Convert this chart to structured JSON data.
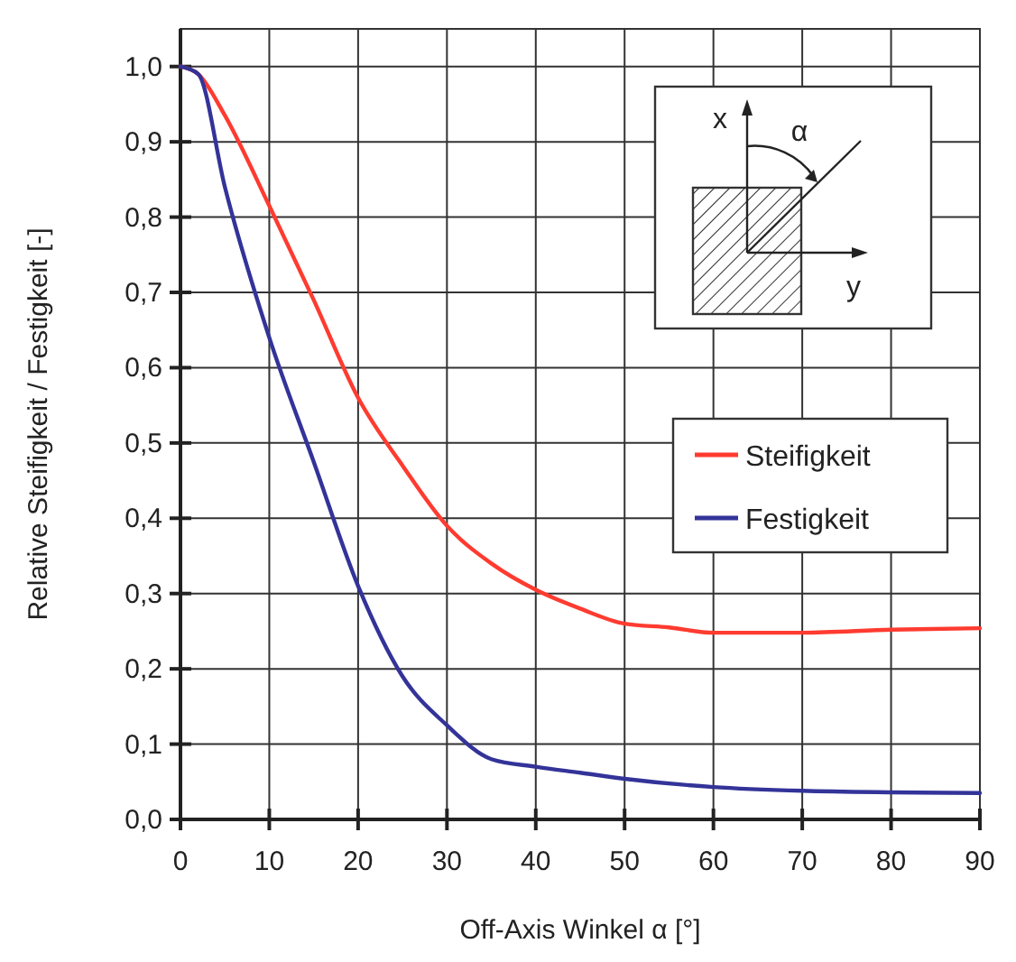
{
  "chart_data": {
    "type": "line",
    "xlabel": "Off-Axis Winkel α  [°]",
    "ylabel": "Relative Steifigkeit / Festigkeit   [-]",
    "xlim": [
      0,
      90
    ],
    "xticks": [
      0,
      10,
      20,
      30,
      40,
      50,
      60,
      70,
      80,
      90
    ],
    "ylim": [
      0,
      1.05
    ],
    "yticks": [
      {
        "value": 0,
        "label": "0,0"
      },
      {
        "value": 0.1,
        "label": "0,1"
      },
      {
        "value": 0.2,
        "label": "0,2"
      },
      {
        "value": 0.3,
        "label": "0,3"
      },
      {
        "value": 0.4,
        "label": "0,4"
      },
      {
        "value": 0.5,
        "label": "0,5"
      },
      {
        "value": 0.6,
        "label": "0,6"
      },
      {
        "value": 0.7,
        "label": "0,7"
      },
      {
        "value": 0.8,
        "label": "0,8"
      },
      {
        "value": 0.9,
        "label": "0,9"
      },
      {
        "value": 1,
        "label": "1,0"
      }
    ],
    "grid": true,
    "legend": "right",
    "marker": "none",
    "line_style": "solid",
    "annotations": [
      "x",
      "y",
      "α"
    ],
    "series": [
      {
        "name": "Steifigkeit",
        "color": "#ff3b30",
        "x": [
          0,
          2,
          5,
          10,
          15,
          20,
          25,
          30,
          35,
          40,
          45,
          50,
          55,
          60,
          70,
          80,
          90
        ],
        "values": [
          1.0,
          0.99,
          0.935,
          0.815,
          0.69,
          0.56,
          0.47,
          0.39,
          0.34,
          0.305,
          0.28,
          0.26,
          0.255,
          0.248,
          0.248,
          0.252,
          0.254
        ]
      },
      {
        "name": "Festigkeit",
        "color": "#333399",
        "x": [
          0,
          2,
          5,
          10,
          15,
          20,
          25,
          30,
          35,
          40,
          45,
          50,
          60,
          70,
          80,
          90
        ],
        "values": [
          1.0,
          0.99,
          0.84,
          0.64,
          0.475,
          0.31,
          0.19,
          0.125,
          0.08,
          0.07,
          0.062,
          0.054,
          0.043,
          0.038,
          0.036,
          0.035
        ]
      }
    ]
  }
}
